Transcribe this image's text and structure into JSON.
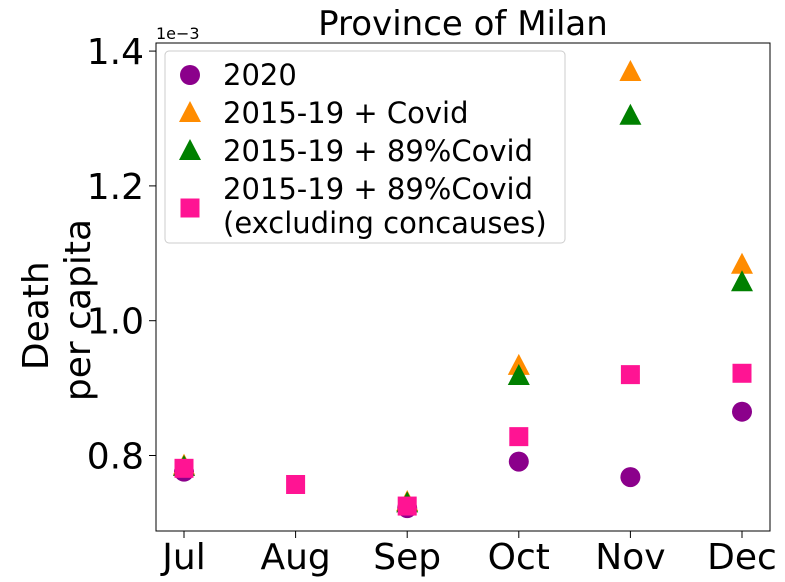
{
  "chart_data": {
    "type": "scatter",
    "title": "Province of Milan",
    "ylabel_lines": [
      "Death",
      "per capita"
    ],
    "y_offset_text": "1e−3",
    "categories": [
      "Jul",
      "Aug",
      "Sep",
      "Oct",
      "Nov",
      "Dec"
    ],
    "ylim": [
      0.000688,
      0.001412
    ],
    "yticks": [
      {
        "value": 0.0008,
        "label": "0.8"
      },
      {
        "value": 0.001,
        "label": "1.0"
      },
      {
        "value": 0.0012,
        "label": "1.2"
      },
      {
        "value": 0.0014,
        "label": "1.4"
      }
    ],
    "legend_position": "upper-left",
    "series": [
      {
        "name": "2020",
        "marker": "circle",
        "color": "#8b008b",
        "values": [
          0.000776,
          null,
          0.000722,
          0.000791,
          0.000768,
          0.000865
        ]
      },
      {
        "name": "2015-19 + Covid",
        "marker": "triangle",
        "color": "#ff8c00",
        "values": [
          0.000785,
          null,
          0.000731,
          0.000933,
          0.001369,
          0.001083
        ]
      },
      {
        "name": "2015-19 + 89%Covid",
        "marker": "triangle",
        "color": "#008000",
        "values": [
          0.000783,
          null,
          0.000729,
          0.000918,
          0.001304,
          0.001057
        ]
      },
      {
        "name": "2015-19 + 89%Covid\n(excluding concauses)",
        "marker": "square",
        "color": "#ff1493",
        "values": [
          0.000781,
          0.000757,
          0.000725,
          0.000828,
          0.00092,
          0.000922
        ]
      }
    ]
  }
}
